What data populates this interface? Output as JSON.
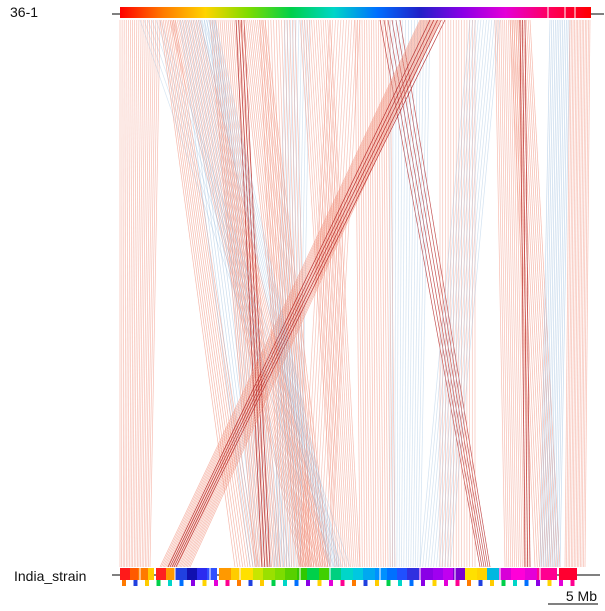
{
  "genomes": {
    "top": {
      "name": "36-1"
    },
    "bottom": {
      "name": "India_strain"
    }
  },
  "scale_bar": {
    "label": "5 Mb"
  },
  "colors": {
    "forward_links": "#f08a75",
    "forward_links_dark": "#b01818",
    "inverted_links": "#8fb6dc",
    "scale_bar": "#000000"
  },
  "legend_rainbow": [
    "#ff0000",
    "#ff7a00",
    "#ffd400",
    "#7ddc00",
    "#00d04a",
    "#00d6c8",
    "#0070ff",
    "#2020c8",
    "#8a00e6",
    "#e400d8",
    "#ff0060",
    "#ff0000"
  ]
}
